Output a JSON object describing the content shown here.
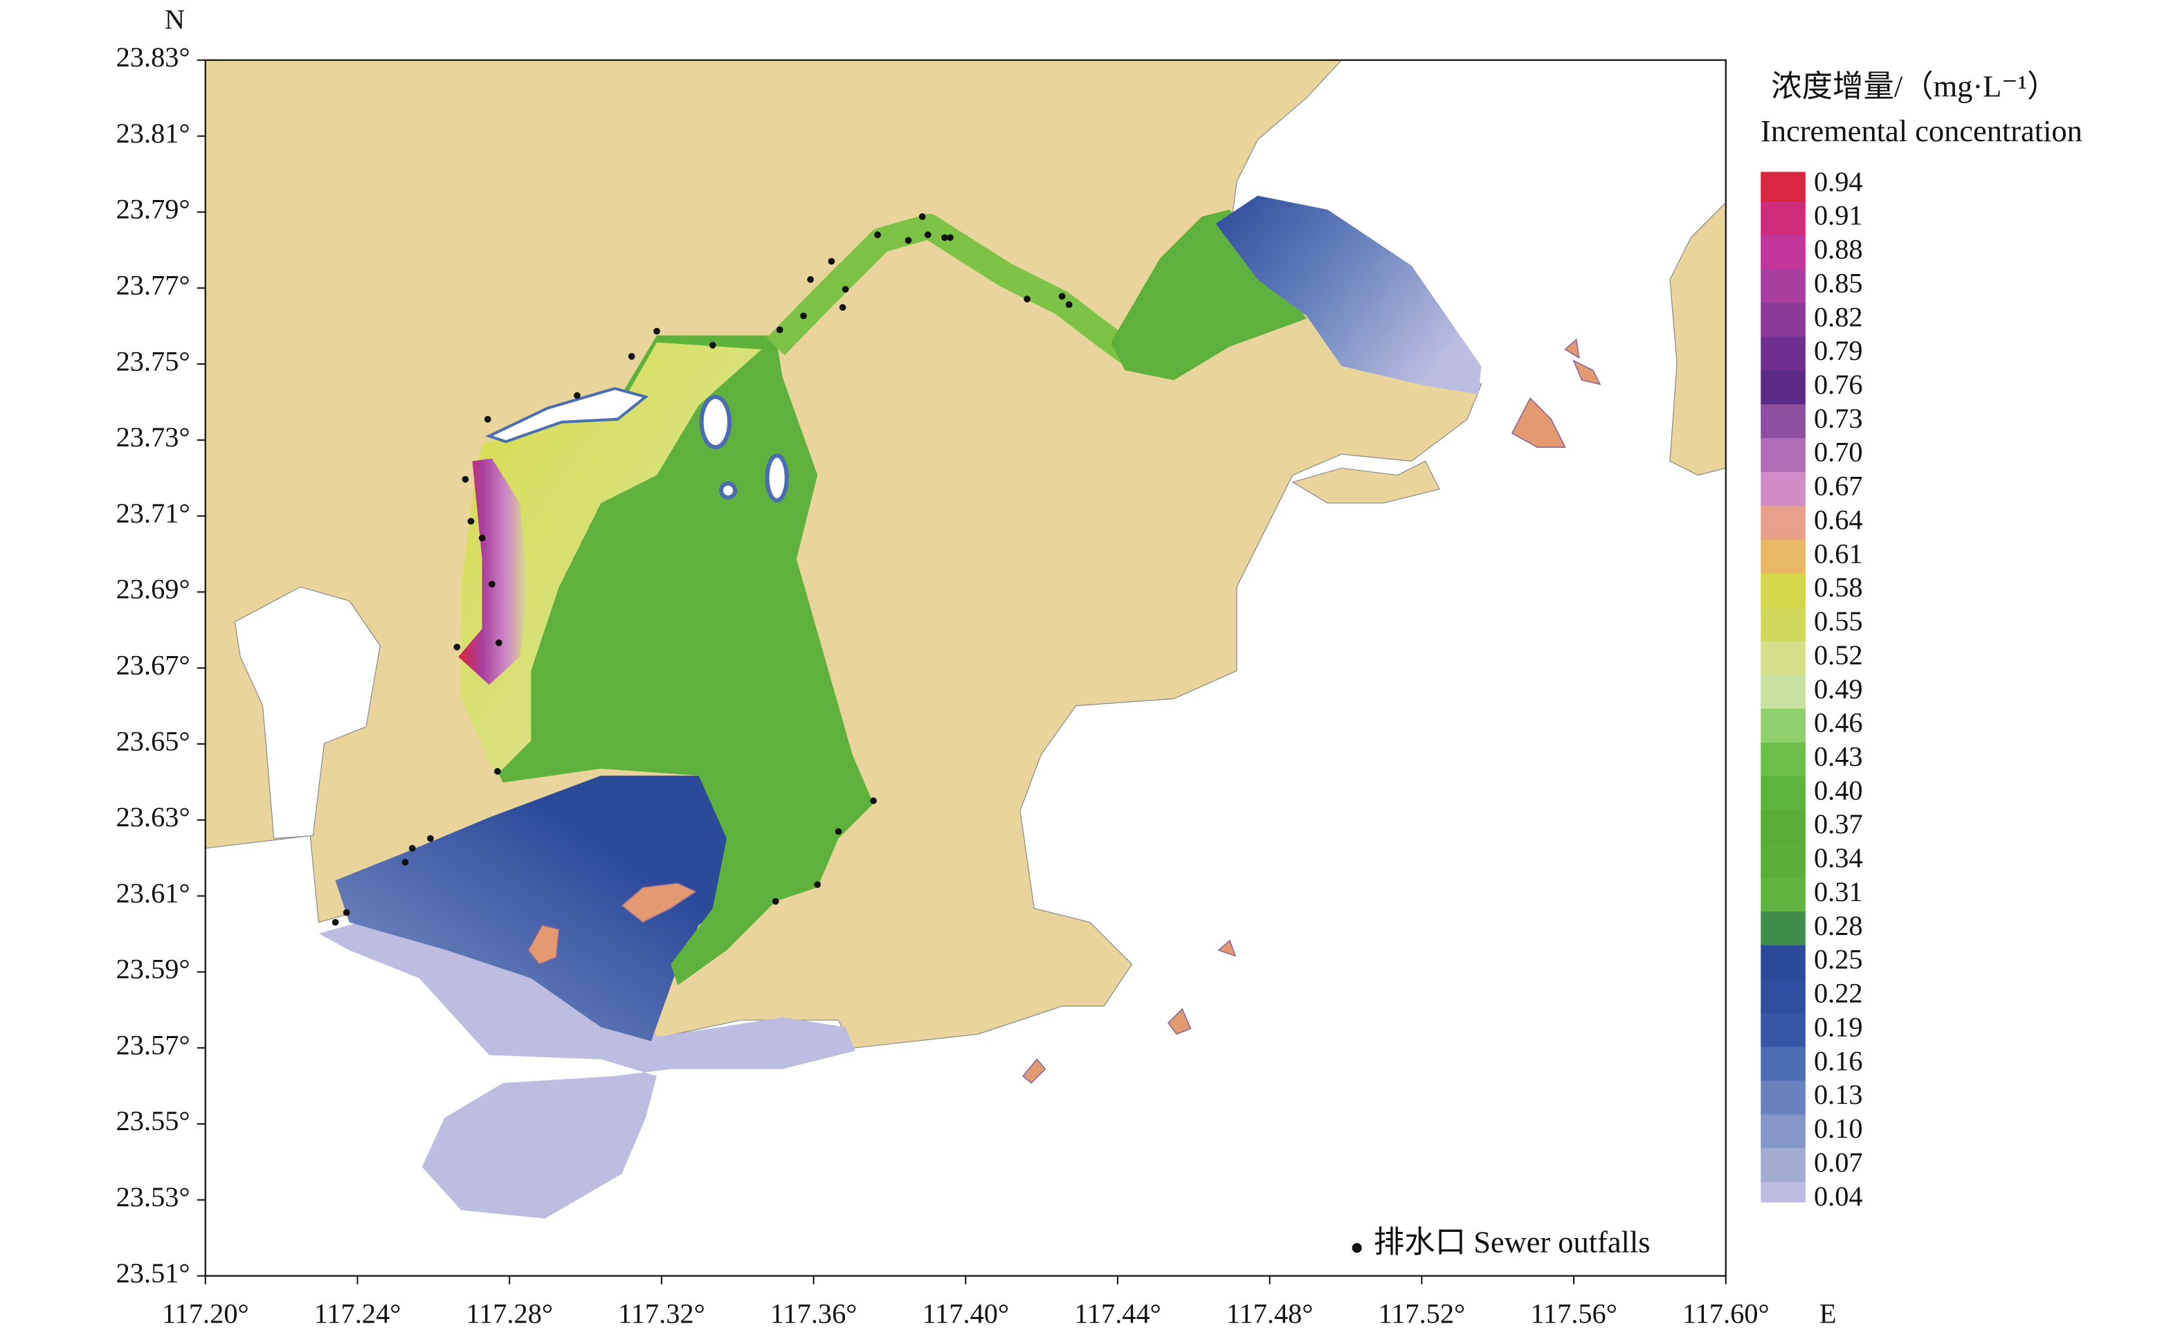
{
  "map": {
    "north_label": "N",
    "east_label": "E",
    "xlim": [
      117.2,
      117.6
    ],
    "ylim": [
      23.51,
      23.83
    ],
    "xticks": [
      {
        "value": 117.2,
        "label": "117.20°"
      },
      {
        "value": 117.24,
        "label": "117.24°"
      },
      {
        "value": 117.28,
        "label": "117.28°"
      },
      {
        "value": 117.32,
        "label": "117.32°"
      },
      {
        "value": 117.36,
        "label": "117.36°"
      },
      {
        "value": 117.4,
        "label": "117.40°"
      },
      {
        "value": 117.44,
        "label": "117.44°"
      },
      {
        "value": 117.48,
        "label": "117.48°"
      },
      {
        "value": 117.52,
        "label": "117.52°"
      },
      {
        "value": 117.56,
        "label": "117.56°"
      },
      {
        "value": 117.6,
        "label": "117.60°"
      }
    ],
    "yticks": [
      {
        "value": 23.83,
        "label": "23.83°"
      },
      {
        "value": 23.81,
        "label": "23.81°"
      },
      {
        "value": 23.79,
        "label": "23.79°"
      },
      {
        "value": 23.77,
        "label": "23.77°"
      },
      {
        "value": 23.75,
        "label": "23.75°"
      },
      {
        "value": 23.73,
        "label": "23.73°"
      },
      {
        "value": 23.71,
        "label": "23.71°"
      },
      {
        "value": 23.69,
        "label": "23.69°"
      },
      {
        "value": 23.67,
        "label": "23.67°"
      },
      {
        "value": 23.65,
        "label": "23.65°"
      },
      {
        "value": 23.63,
        "label": "23.63°"
      },
      {
        "value": 23.61,
        "label": "23.61°"
      },
      {
        "value": 23.59,
        "label": "23.59°"
      },
      {
        "value": 23.57,
        "label": "23.57°"
      },
      {
        "value": 23.55,
        "label": "23.55°"
      },
      {
        "value": 23.53,
        "label": "23.53°"
      },
      {
        "value": 23.51,
        "label": "23.51°"
      }
    ]
  },
  "legend": {
    "title": "浓度增量/（mg·L⁻¹）",
    "subtitle": "Incremental concentration",
    "levels": [
      0.94,
      0.91,
      0.88,
      0.85,
      0.82,
      0.79,
      0.76,
      0.73,
      {
        "value": 0.7,
        "label": "0.70"
      },
      0.67,
      0.64,
      0.61,
      0.58,
      0.55,
      0.52,
      0.49,
      0.46,
      0.43,
      {
        "value": 0.4,
        "label": "0.40"
      },
      0.37,
      0.34,
      0.31,
      0.28,
      0.25,
      0.22,
      0.19,
      0.16,
      0.13,
      {
        "value": 0.1,
        "label": "0.10"
      },
      0.07,
      0.04
    ],
    "colors": [
      "#d7263d",
      "#d02a7a",
      "#c2359a",
      "#a83e9e",
      "#8b3a9a",
      "#6f2f8f",
      "#5a2a86",
      "#8e4fa0",
      "#b06cb6",
      "#cf8cc6",
      "#e9a08a",
      "#e9b866",
      "#d6d64a",
      "#cfd85a",
      "#d6e08a",
      "#c8e0a0",
      "#8fcf6e",
      "#6dbf4a",
      "#5db43c",
      "#57ad37",
      "#5aae3a",
      "#62b440",
      "#3f8d4a",
      "#2b4a9a",
      "#2e4ea0",
      "#3557a5",
      "#4a6cb0",
      "#6782bd",
      "#8497c8",
      "#a2acd3",
      "#bcbde0"
    ],
    "outfalls_label": "排水口 Sewer outfalls"
  }
}
